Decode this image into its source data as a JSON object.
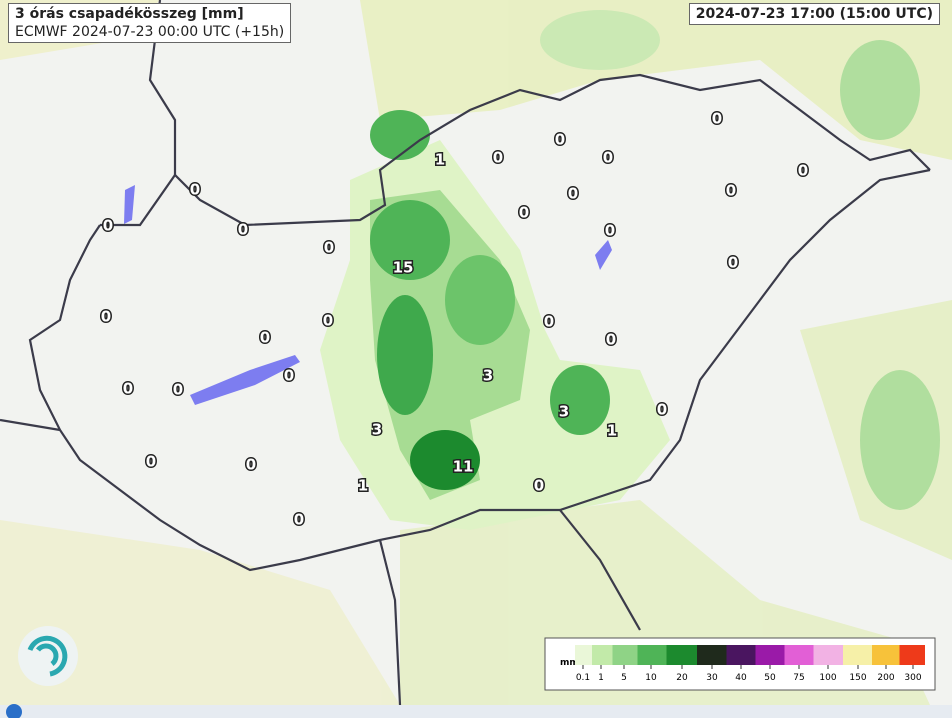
{
  "header": {
    "title": "3 órás csapadékösszeg [mm]",
    "subtitle": "ECMWF 2024-07-23 00:00 UTC (+15h)",
    "valid_time": "2024-07-23 17:00 (15:00 UTC)"
  },
  "map_labels": [
    1,
    0,
    0,
    0,
    0,
    0,
    0,
    0,
    0,
    0,
    0,
    0,
    0,
    0,
    0,
    15,
    0,
    0,
    0,
    0,
    0,
    0,
    3,
    0,
    0,
    3,
    0,
    1,
    3,
    0,
    0,
    11,
    1,
    0,
    0
  ],
  "legend": {
    "unit": "mm",
    "ticks": [
      {
        "value": 0.1,
        "label": "0.1"
      },
      1,
      5,
      10,
      20,
      30,
      40,
      50,
      75,
      100,
      150,
      200,
      300
    ],
    "colors": [
      "#eaf7d8",
      "#c2eaa9",
      "#8fd386",
      "#4fb457",
      "#1c8a2e",
      "#1f2a1c",
      "#4a1560",
      "#9a1aa8",
      "#e25fd6",
      "#f2b2e4",
      "#f6f0a8",
      "#f7c23a",
      "#ee3a1a"
    ]
  }
}
